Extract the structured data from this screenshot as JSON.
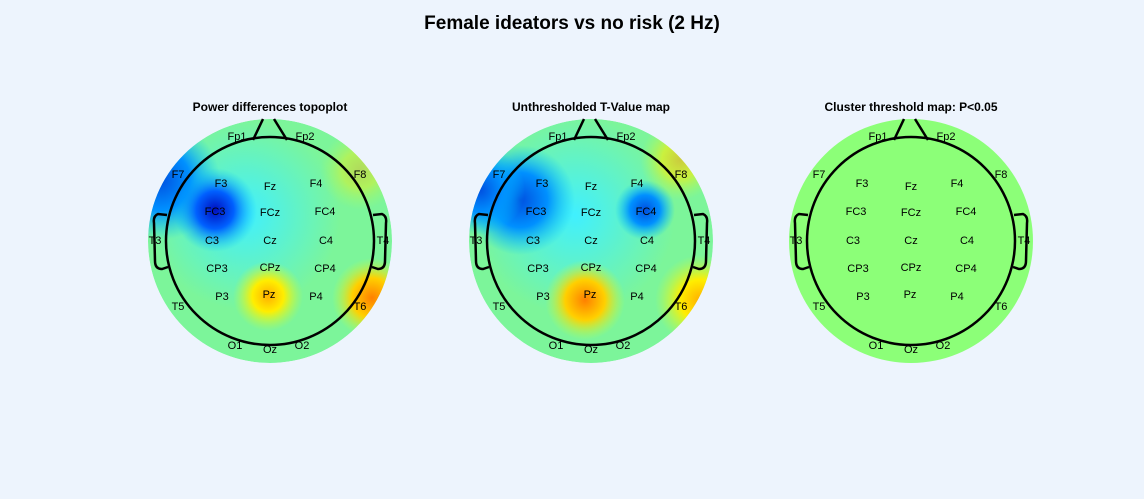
{
  "title": "Female ideators vs no risk (2 Hz)",
  "panels": [
    {
      "title": "Power differences topoplot"
    },
    {
      "title": "Unthresholded T-Value map"
    },
    {
      "title": "Cluster threshold map: P<0.05"
    }
  ],
  "electrodes": [
    "Fp1",
    "Fp2",
    "F7",
    "F3",
    "Fz",
    "F4",
    "F8",
    "FC3",
    "FCz",
    "FC4",
    "T3",
    "C3",
    "Cz",
    "C4",
    "T4",
    "CP3",
    "CPz",
    "CP4",
    "T5",
    "P3",
    "Pz",
    "P4",
    "T6",
    "O1",
    "Oz",
    "O2"
  ]
}
